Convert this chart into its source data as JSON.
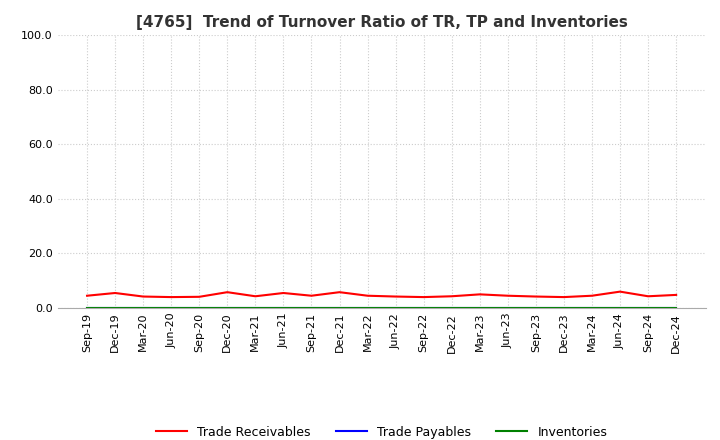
{
  "title": "[4765]  Trend of Turnover Ratio of TR, TP and Inventories",
  "ylim": [
    0,
    100
  ],
  "yticks": [
    0.0,
    20.0,
    40.0,
    60.0,
    80.0,
    100.0
  ],
  "ytick_labels": [
    "0.0",
    "20.0",
    "40.0",
    "60.0",
    "80.0",
    "100.0"
  ],
  "background_color": "#ffffff",
  "grid_color": "#cccccc",
  "x_labels": [
    "Sep-19",
    "Dec-19",
    "Mar-20",
    "Jun-20",
    "Sep-20",
    "Dec-20",
    "Mar-21",
    "Jun-21",
    "Sep-21",
    "Dec-21",
    "Mar-22",
    "Jun-22",
    "Sep-22",
    "Dec-22",
    "Mar-23",
    "Jun-23",
    "Sep-23",
    "Dec-23",
    "Mar-24",
    "Jun-24",
    "Sep-24",
    "Dec-24"
  ],
  "trade_receivables": [
    4.5,
    5.5,
    4.2,
    4.0,
    4.1,
    5.8,
    4.3,
    5.5,
    4.5,
    5.8,
    4.5,
    4.2,
    4.0,
    4.3,
    5.0,
    4.5,
    4.2,
    4.0,
    4.5,
    6.0,
    4.3,
    4.8
  ],
  "trade_payables": [
    0.1,
    0.1,
    0.1,
    0.1,
    0.1,
    0.1,
    0.1,
    0.1,
    0.1,
    0.1,
    0.1,
    0.1,
    0.1,
    0.1,
    0.1,
    0.1,
    0.1,
    0.1,
    0.1,
    0.1,
    0.1,
    0.1
  ],
  "inventories": [
    0.05,
    0.05,
    0.05,
    0.05,
    0.05,
    0.05,
    0.05,
    0.05,
    0.05,
    0.05,
    0.05,
    0.05,
    0.05,
    0.05,
    0.05,
    0.05,
    0.05,
    0.05,
    0.05,
    0.05,
    0.05,
    0.05
  ],
  "tr_color": "#ff0000",
  "tp_color": "#0000ff",
  "inv_color": "#008000",
  "tr_label": "Trade Receivables",
  "tp_label": "Trade Payables",
  "inv_label": "Inventories",
  "line_width": 1.5,
  "title_fontsize": 11,
  "tick_fontsize": 8,
  "legend_fontsize": 9
}
